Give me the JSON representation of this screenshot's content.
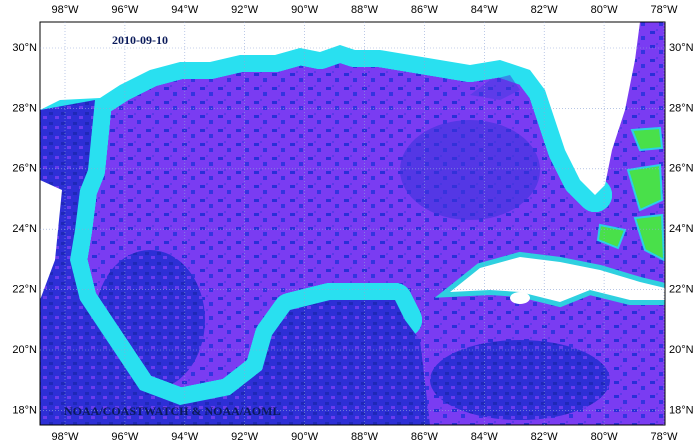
{
  "map": {
    "date": "2010-09-10",
    "credit": "NOAA/COASTWATCH & NOAA/AOML",
    "longitude_labels": [
      "98°W",
      "96°W",
      "94°W",
      "92°W",
      "90°W",
      "88°W",
      "86°W",
      "84°W",
      "82°W",
      "80°W",
      "78°W"
    ],
    "latitude_labels": [
      "30°N",
      "28°N",
      "26°N",
      "24°N",
      "22°N",
      "20°N",
      "18°N"
    ]
  }
}
